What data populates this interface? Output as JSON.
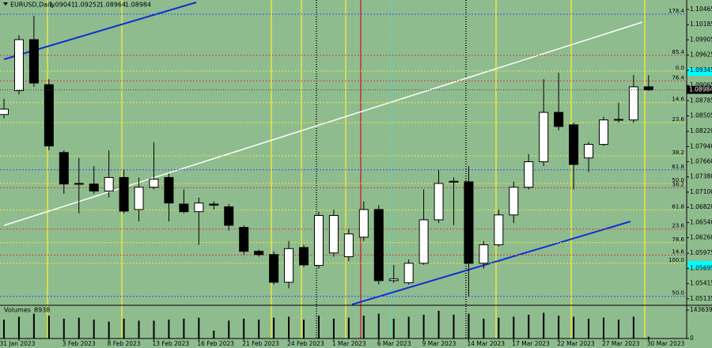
{
  "chart_data": {
    "type": "candlestick",
    "title": "EURUSD,Daily",
    "categories": [
      null,
      "31 Jan 2023",
      null,
      null,
      "3 Feb 2023",
      null,
      null,
      "8 Feb 2023",
      null,
      null,
      "13 Feb 2023",
      null,
      null,
      "16 Feb 2023",
      null,
      null,
      "21 Feb 2023",
      null,
      null,
      "24 Feb 2023",
      null,
      null,
      "1 Mar 2023",
      null,
      null,
      "6 Mar 2023",
      null,
      null,
      "9 Mar 2023",
      null,
      null,
      "14 Mar 2023",
      null,
      null,
      "17 Mar 2023",
      null,
      null,
      "22 Mar 2023",
      null,
      null,
      "27 Mar 2023",
      null,
      null,
      "30 Mar 2023"
    ],
    "open": [
      1.0853,
      1.0897,
      1.0991,
      1.0908,
      1.0783,
      1.0725,
      1.0725,
      1.0712,
      1.0737,
      1.0678,
      1.0719,
      1.0737,
      1.0688,
      1.0674,
      1.0688,
      1.0683,
      1.0645,
      1.0601,
      1.0595,
      1.0544,
      1.0608,
      1.0575,
      1.0598,
      1.0591,
      1.0627,
      1.0678,
      1.0547,
      1.0543,
      1.0579,
      1.0659,
      1.0729,
      1.0729,
      1.0579,
      1.0613,
      1.0668,
      1.0719,
      1.0766,
      1.0857,
      1.0834,
      1.0773,
      1.0798,
      1.0843,
      1.0843,
      1.09041
    ],
    "high": [
      1.0882,
      1.0999,
      1.1035,
      1.0918,
      1.0787,
      1.0773,
      1.0758,
      1.0787,
      1.0751,
      1.0737,
      1.0802,
      1.0744,
      1.0715,
      1.07,
      1.0693,
      1.0688,
      1.0649,
      1.0604,
      1.0601,
      1.062,
      1.0613,
      1.0674,
      1.0678,
      1.0642,
      1.0693,
      1.0686,
      1.0576,
      1.0586,
      1.0715,
      1.0751,
      1.0737,
      1.0758,
      1.062,
      1.0678,
      1.0729,
      1.078,
      1.0918,
      1.093,
      1.0838,
      1.0802,
      1.0849,
      1.0875,
      1.0926,
      1.09252
    ],
    "low": [
      1.0846,
      1.089,
      1.0904,
      1.0787,
      1.0707,
      1.0671,
      1.0707,
      1.07,
      1.0671,
      1.0656,
      1.0715,
      1.0656,
      1.0671,
      1.0613,
      1.0678,
      1.0639,
      1.0595,
      1.0591,
      1.054,
      1.0533,
      1.0572,
      1.0569,
      1.0591,
      1.0583,
      1.062,
      1.054,
      1.0543,
      1.054,
      1.0576,
      1.0653,
      1.0649,
      1.0518,
      1.0569,
      1.061,
      1.0653,
      1.0715,
      1.0758,
      1.0824,
      1.0715,
      1.0747,
      1.0795,
      1.0838,
      1.0838,
      1.08964
    ],
    "close": [
      1.0863,
      1.0991,
      1.0911,
      1.0795,
      1.0725,
      1.0726,
      1.0712,
      1.0737,
      1.0675,
      1.0719,
      1.0734,
      1.069,
      1.0674,
      1.069,
      1.0686,
      1.0649,
      1.0601,
      1.0595,
      1.0544,
      1.0606,
      1.0576,
      1.0667,
      1.0667,
      1.0633,
      1.0678,
      1.0547,
      1.055,
      1.0579,
      1.0659,
      1.0726,
      1.073,
      1.0579,
      1.0613,
      1.0668,
      1.0719,
      1.0766,
      1.0857,
      1.0831,
      1.0761,
      1.0798,
      1.0843,
      1.0844,
      1.0904,
      1.08984
    ],
    "ylim": [
      1.0503,
      1.1064
    ],
    "yticks": [
      1.10465,
      1.10185,
      1.09905,
      1.09625,
      1.09345,
      1.09065,
      1.08785,
      1.08505,
      {
        "value": 1.0822,
        "label": "1.08220"
      },
      {
        "value": 1.0794,
        "label": "1.07940"
      },
      {
        "value": 1.0766,
        "label": "1.07660"
      },
      {
        "value": 1.0738,
        "label": "1.07380"
      },
      {
        "value": 1.071,
        "label": "1.07100"
      },
      {
        "value": 1.0682,
        "label": "1.06820"
      },
      {
        "value": 1.0654,
        "label": "1.06540"
      },
      {
        "value": 1.0626,
        "label": "1.06260"
      },
      1.05975,
      1.05695,
      1.05415,
      1.05135
    ],
    "fib_levels": [
      {
        "label": "178.4",
        "value": 1.1038,
        "color": "#3050ff"
      },
      {
        "label": "85.4",
        "value": 1.0962,
        "color": "#d04040"
      },
      {
        "label": "0.0",
        "value": 1.0933,
        "color": "#e8e840"
      },
      {
        "label": "76.4",
        "value": 1.0915,
        "color": "#d04040"
      },
      {
        "label": "14.6",
        "value": 1.0875,
        "color": "#e8e840"
      },
      {
        "label": "23.6",
        "value": 1.0838,
        "color": "#e8e840"
      },
      {
        "label": "38.2",
        "value": 1.0777,
        "color": "#e8e840"
      },
      {
        "label": "61.8",
        "value": 1.0751,
        "color": "#3050ff"
      },
      {
        "label": "50.0",
        "value": 1.0726,
        "color": "#e8e840"
      },
      {
        "label": "38.2",
        "value": 1.0718,
        "color": "#d04040"
      },
      {
        "label": "61.8",
        "value": 1.0677,
        "color": "#e8e840"
      },
      {
        "label": "23.6",
        "value": 1.0642,
        "color": "#d04040"
      },
      {
        "label": "78.6",
        "value": 1.0617,
        "color": "#e8e840"
      },
      {
        "label": "14.6",
        "value": 1.0594,
        "color": "#d04040"
      },
      {
        "label": "100.0",
        "value": 1.0579,
        "color": "#e8e840"
      },
      {
        "label": "50.0",
        "value": 1.0518,
        "color": "#3050ff"
      }
    ],
    "volume_label": "Volumes",
    "volumes": [
      95000,
      110000,
      125000,
      115000,
      100000,
      105000,
      95000,
      85000,
      100000,
      90000,
      90000,
      95000,
      100000,
      105000,
      40000,
      90000,
      100000,
      95000,
      105000,
      110000,
      95000,
      115000,
      100000,
      105000,
      115000,
      125000,
      100000,
      110000,
      120000,
      140000,
      120000,
      125000,
      100000,
      105000,
      110000,
      120000,
      130000,
      115000,
      110000,
      100000,
      105000,
      95000,
      110000,
      8938
    ],
    "volume_ylim": [
      0,
      143639
    ],
    "volume_yticks": [
      143639,
      0
    ]
  }
}
